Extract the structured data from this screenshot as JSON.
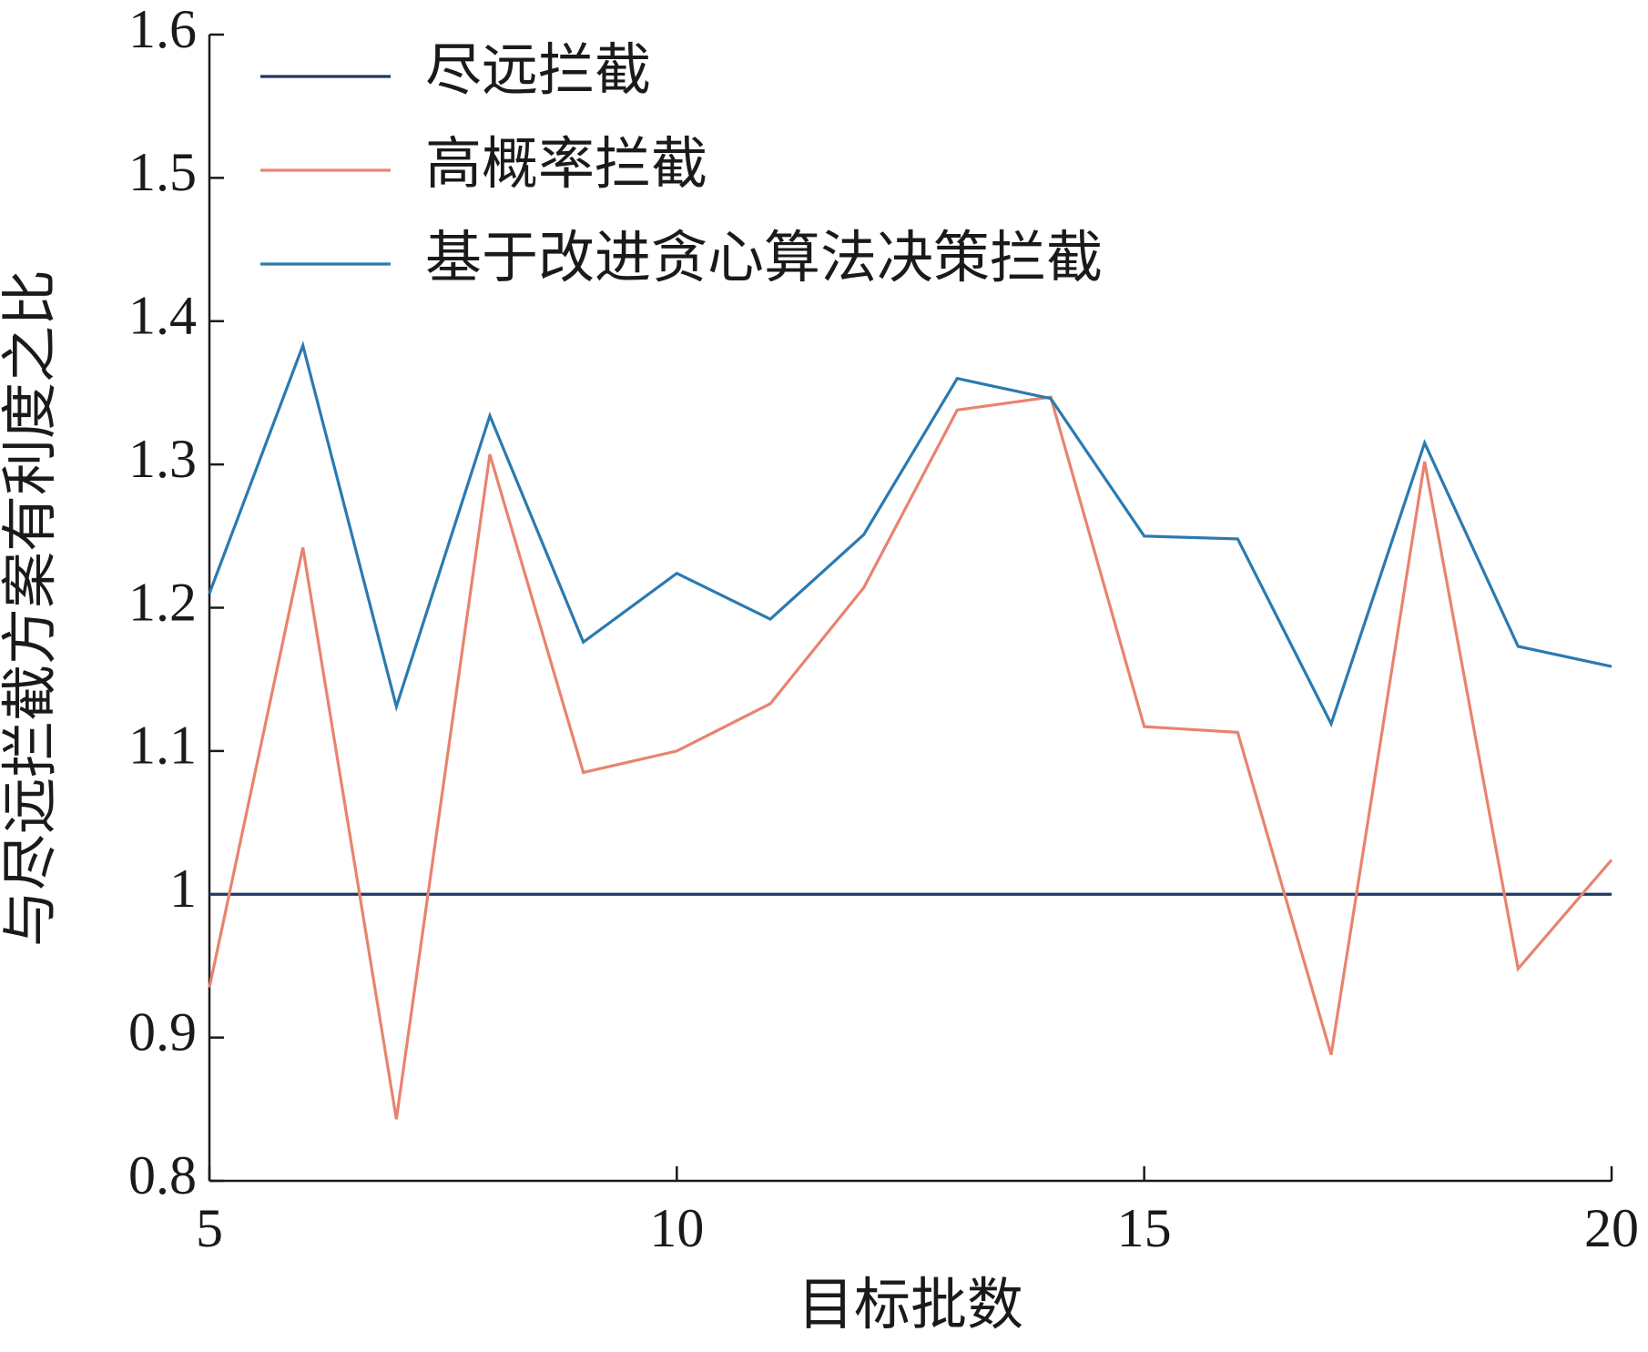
{
  "chart_data": {
    "type": "line",
    "x": [
      5,
      6,
      7,
      8,
      9,
      10,
      11,
      12,
      13,
      14,
      15,
      16,
      17,
      18,
      19,
      20
    ],
    "series": [
      {
        "name": "尽远拦截",
        "color": "#1f3864",
        "values": [
          1,
          1,
          1,
          1,
          1,
          1,
          1,
          1,
          1,
          1,
          1,
          1,
          1,
          1,
          1,
          1
        ]
      },
      {
        "name": "高概率拦截",
        "color": "#e8836f",
        "values": [
          0.935,
          1.242,
          0.843,
          1.307,
          1.085,
          1.1,
          1.133,
          1.214,
          1.338,
          1.347,
          1.117,
          1.113,
          0.888,
          1.302,
          0.948,
          1.024
        ]
      },
      {
        "name": "基于改进贪心算法决策拦截",
        "color": "#2a7ab0",
        "values": [
          1.21,
          1.383,
          1.131,
          1.334,
          1.176,
          1.224,
          1.192,
          1.251,
          1.36,
          1.346,
          1.25,
          1.248,
          1.119,
          1.315,
          1.173,
          1.159
        ]
      }
    ],
    "xlabel": "目标批数",
    "ylabel": "与尽远拦截方案有利度之比",
    "xlim": [
      5,
      20
    ],
    "xticks": [
      5,
      10,
      15,
      20
    ],
    "ylim": [
      0.8,
      1.6
    ],
    "yticks": [
      0.8,
      0.9,
      1,
      1.1,
      1.2,
      1.3,
      1.4,
      1.5,
      1.6
    ],
    "legend": "upper left",
    "grid": false
  }
}
